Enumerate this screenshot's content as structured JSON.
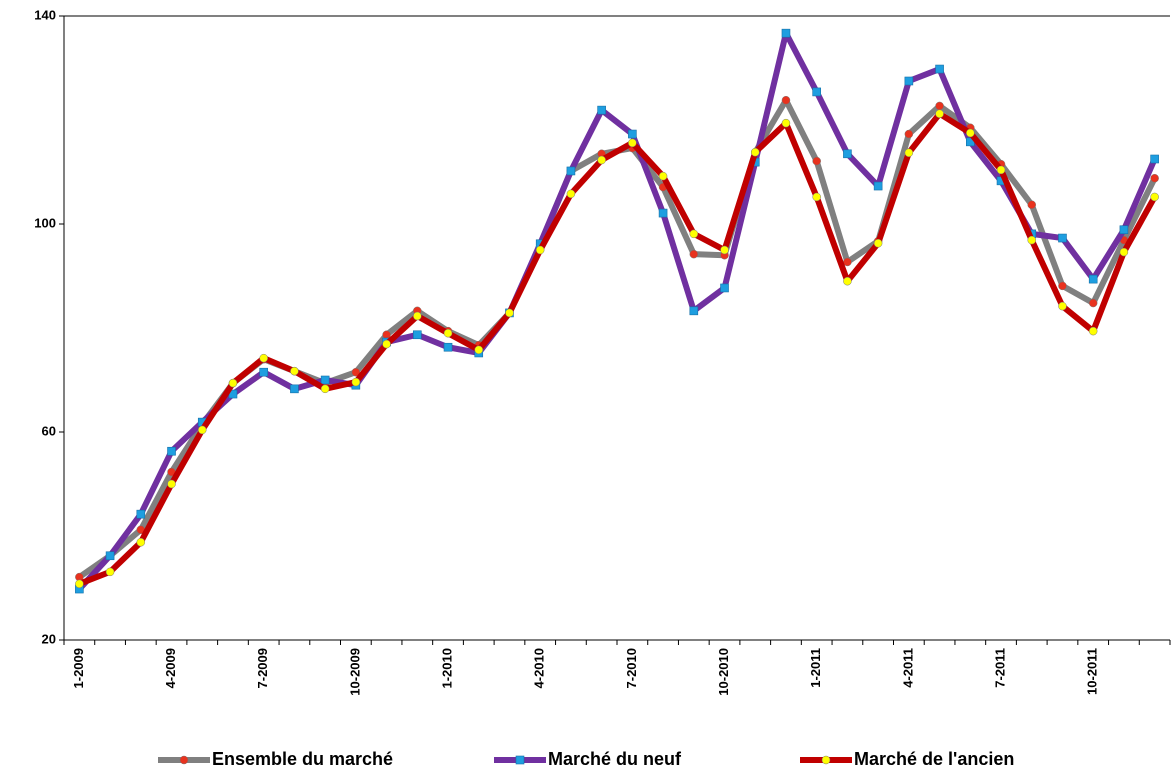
{
  "chart_data": {
    "type": "line",
    "categories": [
      "1-2009",
      null,
      null,
      "4-2009",
      null,
      null,
      "7-2009",
      null,
      null,
      "10-2009",
      null,
      null,
      "1-2010",
      null,
      null,
      "4-2010",
      null,
      null,
      "7-2010",
      null,
      null,
      "10-2010",
      null,
      null,
      "1-2011",
      null,
      null,
      "4-2011",
      null,
      null,
      "7-2011",
      null,
      null,
      "10-2011",
      null,
      null
    ],
    "ylim": [
      20,
      140
    ],
    "yticks": [
      20,
      60,
      100,
      140
    ],
    "grid": false,
    "legend": "bottom",
    "series": [
      {
        "name": "Ensemble du marché",
        "color": "#808080",
        "marker": "circle",
        "marker_color": "#e8321e",
        "values": [
          32.1,
          36.2,
          41.2,
          52.3,
          61.5,
          69.4,
          74.0,
          71.7,
          69.4,
          71.5,
          78.7,
          83.3,
          79.4,
          76.7,
          82.9,
          96.0,
          110.2,
          113.5,
          114.6,
          107.1,
          94.2,
          94.0,
          113.8,
          123.8,
          112.1,
          92.7,
          96.7,
          117.3,
          122.7,
          118.5,
          111.5,
          103.7,
          88.1,
          84.8,
          96.9,
          108.8
        ]
      },
      {
        "name": "Marché du neuf",
        "color": "#7030a0",
        "marker": "square",
        "marker_color": "#1e9ee0",
        "values": [
          29.8,
          36.2,
          44.2,
          56.3,
          61.9,
          67.3,
          71.5,
          68.3,
          70.0,
          69.0,
          77.3,
          78.7,
          76.3,
          75.2,
          82.9,
          96.2,
          110.2,
          121.9,
          117.3,
          102.1,
          83.3,
          87.7,
          111.9,
          136.7,
          125.4,
          113.5,
          107.3,
          127.5,
          129.8,
          115.8,
          108.3,
          98.1,
          97.3,
          89.4,
          98.9,
          112.5
        ]
      },
      {
        "name": "Marché de l'ancien",
        "color": "#c00000",
        "marker": "circle",
        "marker_color": "#ffff00",
        "values": [
          30.8,
          33.1,
          38.8,
          50.0,
          60.4,
          69.4,
          74.2,
          71.7,
          68.3,
          69.6,
          76.9,
          82.3,
          79.0,
          75.8,
          82.9,
          95.0,
          105.8,
          112.3,
          115.6,
          109.2,
          98.1,
          95.0,
          113.8,
          119.4,
          105.2,
          89.0,
          96.3,
          113.7,
          121.2,
          117.5,
          110.4,
          96.9,
          84.2,
          79.4,
          94.6,
          105.2
        ]
      }
    ]
  }
}
